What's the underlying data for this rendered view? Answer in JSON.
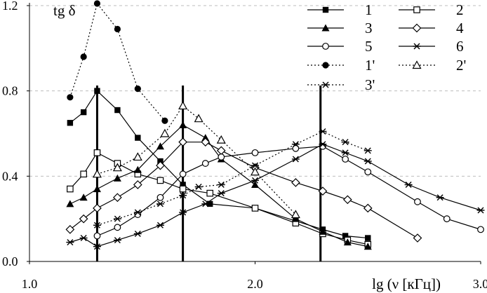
{
  "chart_data": {
    "type": "line",
    "ylabel": "tg δ",
    "xlabel": "lg (ν  [кГц])",
    "xlim": [
      1.0,
      3.0
    ],
    "ylim": [
      0.0,
      1.2
    ],
    "x_ticks": [
      {
        "value": 1.0,
        "label": "1.0"
      },
      {
        "value": 2.0,
        "label": "2.0"
      },
      {
        "value": 3.0,
        "label": "3.0"
      }
    ],
    "y_ticks": [
      {
        "value": 0.0,
        "label": "0.0"
      },
      {
        "value": 0.4,
        "label": "0.4"
      },
      {
        "value": 0.8,
        "label": "0.8"
      },
      {
        "value": 1.2,
        "label": "1.2"
      }
    ],
    "vertical_lines": [
      1.3,
      1.68,
      2.29
    ],
    "legend_position": "top-right",
    "series": [
      {
        "name": "1",
        "marker": "filled-square",
        "dash": "solid",
        "points": [
          [
            1.18,
            0.65
          ],
          [
            1.24,
            0.7
          ],
          [
            1.3,
            0.8
          ],
          [
            1.39,
            0.71
          ],
          [
            1.48,
            0.58
          ],
          [
            1.58,
            0.47
          ],
          [
            1.68,
            0.36
          ],
          [
            1.8,
            0.27
          ],
          [
            2.0,
            0.25
          ],
          [
            2.18,
            0.19
          ],
          [
            2.3,
            0.15
          ],
          [
            2.4,
            0.12
          ],
          [
            2.5,
            0.11
          ]
        ]
      },
      {
        "name": "2",
        "marker": "open-square",
        "dash": "solid",
        "points": [
          [
            1.18,
            0.34
          ],
          [
            1.24,
            0.41
          ],
          [
            1.3,
            0.51
          ],
          [
            1.39,
            0.46
          ],
          [
            1.48,
            0.41
          ],
          [
            1.58,
            0.38
          ],
          [
            1.68,
            0.34
          ],
          [
            1.8,
            0.32
          ],
          [
            2.0,
            0.25
          ],
          [
            2.18,
            0.18
          ],
          [
            2.3,
            0.13
          ],
          [
            2.41,
            0.1
          ],
          [
            2.5,
            0.08
          ]
        ]
      },
      {
        "name": "3",
        "marker": "filled-triangle",
        "dash": "solid",
        "points": [
          [
            1.18,
            0.27
          ],
          [
            1.24,
            0.3
          ],
          [
            1.3,
            0.34
          ],
          [
            1.39,
            0.39
          ],
          [
            1.48,
            0.43
          ],
          [
            1.58,
            0.54
          ],
          [
            1.68,
            0.64
          ],
          [
            1.78,
            0.58
          ],
          [
            1.85,
            0.48
          ],
          [
            2.0,
            0.36
          ],
          [
            2.18,
            0.2
          ],
          [
            2.3,
            0.14
          ],
          [
            2.41,
            0.09
          ],
          [
            2.5,
            0.07
          ]
        ]
      },
      {
        "name": "4",
        "marker": "open-diamond",
        "dash": "solid",
        "points": [
          [
            1.18,
            0.15
          ],
          [
            1.24,
            0.2
          ],
          [
            1.3,
            0.25
          ],
          [
            1.39,
            0.3
          ],
          [
            1.48,
            0.36
          ],
          [
            1.58,
            0.45
          ],
          [
            1.68,
            0.56
          ],
          [
            1.78,
            0.56
          ],
          [
            1.85,
            0.52
          ],
          [
            2.0,
            0.44
          ],
          [
            2.18,
            0.37
          ],
          [
            2.3,
            0.33
          ],
          [
            2.41,
            0.29
          ],
          [
            2.5,
            0.25
          ],
          [
            2.72,
            0.11
          ]
        ]
      },
      {
        "name": "5",
        "marker": "open-circle",
        "dash": "solid",
        "points": [
          [
            1.3,
            0.12
          ],
          [
            1.39,
            0.16
          ],
          [
            1.48,
            0.22
          ],
          [
            1.58,
            0.3
          ],
          [
            1.68,
            0.41
          ],
          [
            1.78,
            0.46
          ],
          [
            1.85,
            0.49
          ],
          [
            2.0,
            0.51
          ],
          [
            2.18,
            0.53
          ],
          [
            2.3,
            0.54
          ],
          [
            2.4,
            0.48
          ],
          [
            2.5,
            0.42
          ],
          [
            2.72,
            0.28
          ],
          [
            2.85,
            0.2
          ],
          [
            3.0,
            0.15
          ]
        ]
      },
      {
        "name": "6",
        "marker": "asterisk",
        "dash": "solid",
        "points": [
          [
            1.18,
            0.09
          ],
          [
            1.24,
            0.11
          ],
          [
            1.3,
            0.07
          ],
          [
            1.39,
            0.1
          ],
          [
            1.48,
            0.13
          ],
          [
            1.58,
            0.17
          ],
          [
            1.68,
            0.23
          ],
          [
            1.78,
            0.27
          ],
          [
            1.85,
            0.32
          ],
          [
            2.0,
            0.38
          ],
          [
            2.18,
            0.48
          ],
          [
            2.3,
            0.55
          ],
          [
            2.4,
            0.51
          ],
          [
            2.5,
            0.47
          ],
          [
            2.68,
            0.36
          ],
          [
            2.82,
            0.3
          ],
          [
            3.0,
            0.24
          ]
        ]
      },
      {
        "name": "1'",
        "marker": "filled-circle",
        "dash": "dotted",
        "points": [
          [
            1.18,
            0.77
          ],
          [
            1.24,
            0.96
          ],
          [
            1.3,
            1.21
          ],
          [
            1.39,
            1.09
          ],
          [
            1.48,
            0.81
          ],
          [
            1.6,
            0.66
          ]
        ]
      },
      {
        "name": "2'",
        "marker": "open-triangle",
        "dash": "dotted",
        "points": [
          [
            1.3,
            0.41
          ],
          [
            1.39,
            0.44
          ],
          [
            1.48,
            0.49
          ],
          [
            1.6,
            0.6
          ],
          [
            1.68,
            0.73
          ],
          [
            1.75,
            0.67
          ],
          [
            1.85,
            0.57
          ],
          [
            2.0,
            0.42
          ],
          [
            2.18,
            0.22
          ]
        ]
      },
      {
        "name": "3'",
        "marker": "asterisk",
        "dash": "dotted",
        "points": [
          [
            1.3,
            0.17
          ],
          [
            1.39,
            0.2
          ],
          [
            1.48,
            0.23
          ],
          [
            1.58,
            0.27
          ],
          [
            1.68,
            0.31
          ],
          [
            1.75,
            0.35
          ],
          [
            1.85,
            0.36
          ],
          [
            2.0,
            0.45
          ],
          [
            2.18,
            0.55
          ],
          [
            2.3,
            0.61
          ],
          [
            2.4,
            0.56
          ],
          [
            2.5,
            0.52
          ]
        ]
      }
    ]
  }
}
